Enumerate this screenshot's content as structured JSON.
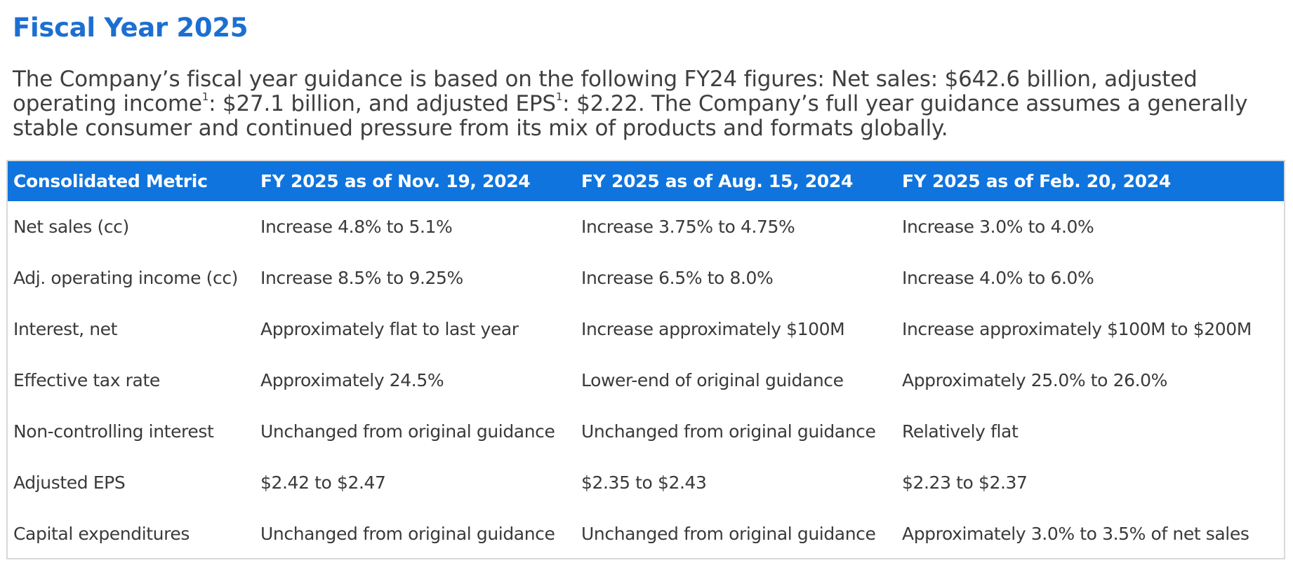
{
  "heading": "Fiscal Year 2025",
  "intro": {
    "part1": "The Company’s fiscal year guidance is based on the following FY24 figures: Net sales: $642.6 billion, adjusted operating income",
    "sup1": "1",
    "part2": ": $27.1 billion, and adjusted EPS",
    "sup2": "1",
    "part3": ": $2.22. The Company’s full year guidance assumes a generally stable consumer and continued pressure from its mix of products and formats globally."
  },
  "table": {
    "header_color": "#0f74de",
    "columns": [
      "Consolidated Metric",
      "FY 2025 as of Nov. 19, 2024",
      "FY 2025 as of Aug. 15, 2024",
      "FY 2025 as of Feb. 20, 2024"
    ],
    "rows": [
      [
        "Net sales (cc)",
        "Increase 4.8% to 5.1%",
        "Increase 3.75% to 4.75%",
        "Increase 3.0% to 4.0%"
      ],
      [
        "Adj. operating income (cc)",
        "Increase 8.5% to 9.25%",
        "Increase 6.5% to 8.0%",
        "Increase 4.0% to 6.0%"
      ],
      [
        "Interest, net",
        "Approximately flat to last year",
        "Increase approximately $100M",
        "Increase approximately $100M to $200M"
      ],
      [
        "Effective tax rate",
        "Approximately 24.5%",
        "Lower-end of original guidance",
        "Approximately 25.0% to 26.0%"
      ],
      [
        "Non-controlling interest",
        "Unchanged from original guidance",
        "Unchanged from original guidance",
        "Relatively flat"
      ],
      [
        "Adjusted EPS",
        "$2.42 to $2.47",
        "$2.35 to $2.43",
        "$2.23 to $2.37"
      ],
      [
        "Capital expenditures",
        "Unchanged from original guidance",
        "Unchanged from original guidance",
        "Approximately 3.0% to 3.5% of net sales"
      ]
    ]
  }
}
